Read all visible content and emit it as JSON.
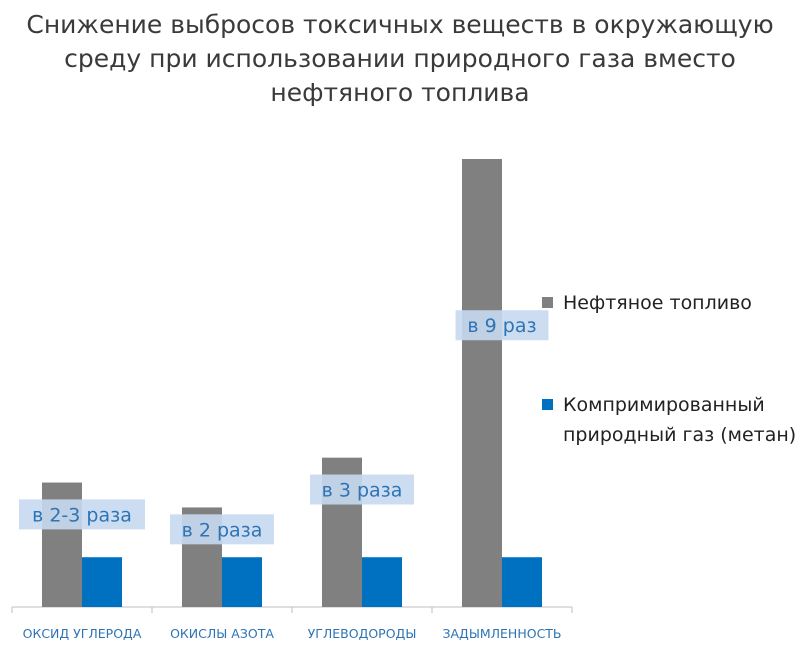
{
  "chart_data": {
    "type": "bar",
    "title_lines": [
      "Снижение выбросов токсичных веществ в окружающую",
      "среду при использовании природного газа вместо",
      "нефтяного топлива"
    ],
    "categories": [
      "ОКСИД УГЛЕРОДА",
      "ОКИСЛЫ АЗОТА",
      "УГЛЕВОДОРОДЫ",
      "ЗАДЫМЛЕННОСТЬ"
    ],
    "series": [
      {
        "name": "Нефтяное топливо",
        "color": "#808080",
        "values": [
          2.5,
          2,
          3,
          9
        ]
      },
      {
        "name": "Компримированный природный газ (метан)",
        "color": "#0070c0",
        "values": [
          1,
          1,
          1,
          1
        ]
      }
    ],
    "annotations": [
      "в 2-3 раза",
      "в 2 раза",
      "в 3 раза",
      "в 9 раз"
    ],
    "ylim": [
      0,
      9
    ],
    "grid": false,
    "legend_position": "right"
  }
}
